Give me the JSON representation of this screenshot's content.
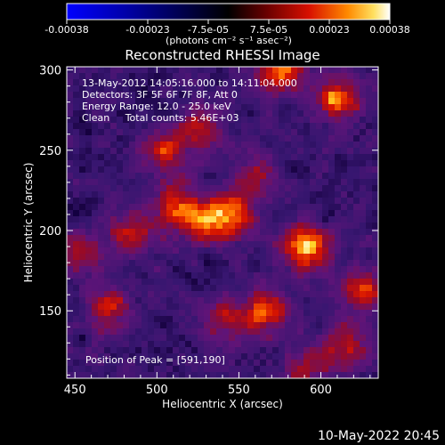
{
  "colorbar": {
    "tick_labels": [
      "-0.00038",
      "-0.00023",
      "-7.5e-05",
      "7.5e-05",
      "0.00023",
      "0.00038"
    ],
    "units_text": "(photons cm⁻² s⁻¹ asec⁻²)",
    "range": [
      -0.00038,
      0.00038
    ]
  },
  "chart_data": {
    "type": "heatmap",
    "title": "Reconstructed RHESSI Image",
    "xlabel": "Heliocentric X (arcsec)",
    "ylabel": "Heliocentric Y (arcsec)",
    "xlim": [
      445,
      635
    ],
    "ylim": [
      108,
      302
    ],
    "xticks": [
      450,
      500,
      550,
      600
    ],
    "yticks": [
      150,
      200,
      250,
      300
    ],
    "annotations": [
      "13-May-2012 14:05:16.000 to 14:11:04.000",
      "Detectors: 3F 5F 6F 7F 8F, Att 0",
      "Energy Range: 12.0 - 25.0 keV",
      "Clean     Total counts: 5.46E+03"
    ],
    "peak_text": "Position of Peak = [591,190]",
    "peak": [
      591,
      190
    ],
    "bright_sources": [
      {
        "x": 591,
        "y": 190,
        "value": 0.00036
      },
      {
        "x": 575,
        "y": 300,
        "value": 0.0003
      },
      {
        "x": 610,
        "y": 282,
        "value": 0.00028
      },
      {
        "x": 546,
        "y": 208,
        "value": 0.00027
      },
      {
        "x": 568,
        "y": 150,
        "value": 0.00026
      },
      {
        "x": 528,
        "y": 205,
        "value": 0.00024
      },
      {
        "x": 512,
        "y": 215,
        "value": 0.00024
      },
      {
        "x": 505,
        "y": 248,
        "value": 0.00022
      },
      {
        "x": 625,
        "y": 162,
        "value": 0.00022
      },
      {
        "x": 470,
        "y": 152,
        "value": 0.0002
      },
      {
        "x": 615,
        "y": 128,
        "value": 0.0002
      },
      {
        "x": 542,
        "y": 145,
        "value": 0.0002
      },
      {
        "x": 484,
        "y": 198,
        "value": 0.00019
      },
      {
        "x": 528,
        "y": 262,
        "value": 0.00019
      },
      {
        "x": 560,
        "y": 235,
        "value": 0.00018
      },
      {
        "x": 453,
        "y": 185,
        "value": 0.00017
      },
      {
        "x": 590,
        "y": 115,
        "value": 0.00016
      }
    ]
  },
  "footer_timestamp": "10-May-2022 20:45"
}
